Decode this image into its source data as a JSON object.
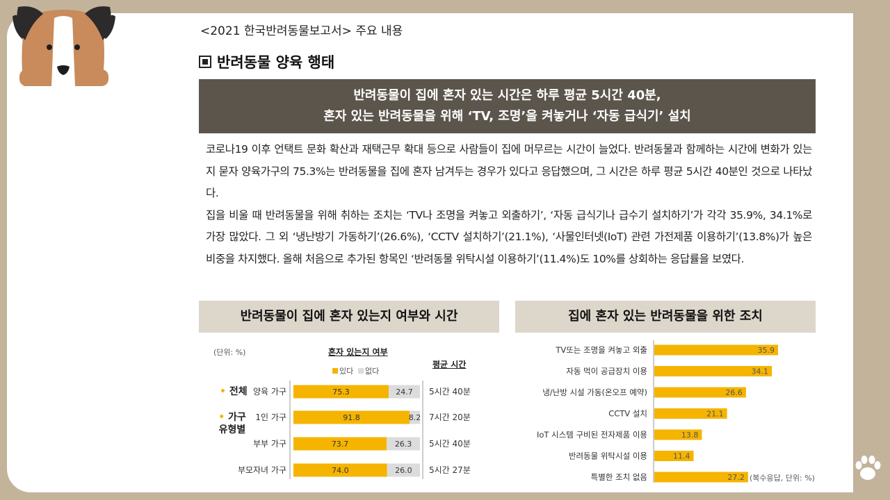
{
  "header": {
    "subtitle": "<2021 한국반려동물보고서> 주요 내용",
    "section_title": "반려동물 양육 행태"
  },
  "banner": {
    "line1": "반려동물이 집에 혼자 있는 시간은 하루 평균 5시간 40분,",
    "line2": "혼자 있는 반려동물을 위해 ‘TV, 조명’을 켜놓거나 ‘자동 급식기’ 설치"
  },
  "body": {
    "p1": "코로나19 이후 언택트 문화 확산과 재택근무 확대 등으로 사람들이 집에 머무르는 시간이 늘었다. 반려동물과 함께하는 시간에 변화가 있는지 묻자 양육가구의 75.3%는 반려동물을 집에 혼자 남겨두는 경우가 있다고 응답했으며, 그 시간은 하루 평균 5시간 40분인 것으로 나타났다.",
    "p2": "집을 비울 때 반려동물을 위해 취하는 조치는 ‘TV나 조명을 켜놓고 외출하기’, ‘자동 급식기나 급수기 설치하기’가 각각 35.9%, 34.1%로 가장 많았다. 그 외 ‘냉난방기 가동하기’(26.6%), ‘CCTV 설치하기’(21.1%), ‘사물인터넷(IoT) 관련 가전제품 이용하기’(13.8%)가 높은 비중을 차지했다. 올해 처음으로 추가된 항목인 ‘반려동물 위탁시설 이용하기’(11.4%)도 10%를 상회하는 응답률을 보였다."
  },
  "colors": {
    "background": "#c3b39b",
    "banner": "#5c554c",
    "chart_header": "#ddd6ca",
    "bar_yes": "#f5b400",
    "bar_no": "#dcdcdc"
  },
  "chart_data": [
    {
      "type": "bar",
      "title": "반려동물이 집에 혼자 있는지 여부와 시간",
      "unit_note": "(단위: %)",
      "subheader": "혼자 있는지 여부",
      "avg_header": "평균 시간",
      "groups": [
        {
          "name": "전체",
          "rows": [
            0
          ]
        },
        {
          "name": "가구 유형별",
          "rows": [
            1,
            2,
            3
          ]
        }
      ],
      "categories": [
        "양육 가구",
        "1인 가구",
        "부부 가구",
        "부모자녀 가구"
      ],
      "series": [
        {
          "name": "있다",
          "values": [
            75.3,
            91.8,
            73.7,
            74.0
          ],
          "labels": [
            "75.3",
            "91.8",
            "73.7",
            "74.0"
          ]
        },
        {
          "name": "없다",
          "values": [
            24.7,
            8.2,
            26.3,
            26.0
          ],
          "labels": [
            "24.7",
            "8.2",
            "26.3",
            "26.0"
          ]
        }
      ],
      "avg_time": [
        "5시간 40분",
        "7시간 20분",
        "5시간 40분",
        "5시간 27분"
      ]
    },
    {
      "type": "bar",
      "title": "집에 혼자 있는 반려동물을 위한 조치",
      "note": "(복수응답, 단위: %)",
      "categories": [
        "TV또는 조명을 켜놓고 외출",
        "자동 먹이 공급장치 이용",
        "냉/난방 시설 가동(온오프 예약)",
        "CCTV 설치",
        "IoT 시스템 구비된 전자제품 이용",
        "반려동물 위탁시설 이용",
        "특별한 조치 없음"
      ],
      "values": [
        35.9,
        34.1,
        26.6,
        21.1,
        13.8,
        11.4,
        27.2
      ],
      "labels": [
        "35.9",
        "34.1",
        "26.6",
        "21.1",
        "13.8",
        "11.4",
        "27.2"
      ]
    }
  ]
}
